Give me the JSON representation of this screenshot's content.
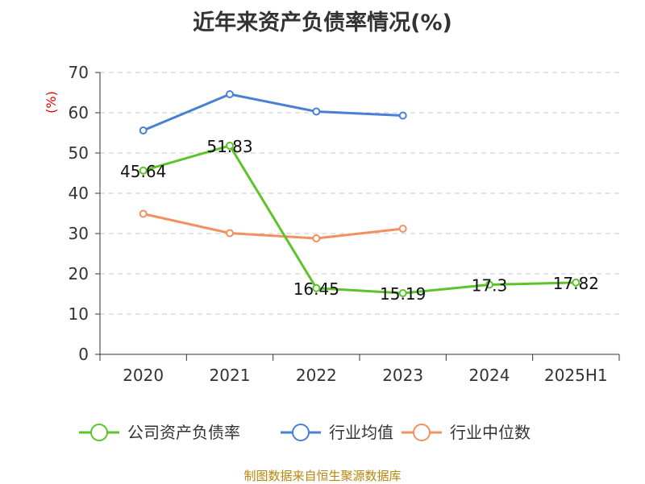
{
  "title": "近年来资产负债率情况(%)",
  "source": "制图数据来自恒生聚源数据库",
  "chart_data": {
    "type": "line",
    "title": "近年来资产负债率情况(%)",
    "ylabel": "(%)",
    "xlabel": "",
    "categories": [
      "2020",
      "2021",
      "2022",
      "2023",
      "2024",
      "2025H1"
    ],
    "ylim": [
      0,
      70
    ],
    "yticks": [
      0,
      10,
      20,
      30,
      40,
      50,
      60,
      70
    ],
    "grid": true,
    "legend_position": "bottom",
    "series": [
      {
        "name": "公司资产负债率",
        "color": "#5cc42a",
        "values": [
          45.64,
          51.83,
          16.45,
          15.19,
          17.3,
          17.82
        ],
        "labels": [
          "45.64",
          "51.83",
          "16.45",
          "15.19",
          "17.3",
          "17.82"
        ]
      },
      {
        "name": "行业均值",
        "color": "#4a7fd6",
        "values": [
          55.6,
          64.6,
          60.3,
          59.3,
          null,
          null
        ]
      },
      {
        "name": "行业中位数",
        "color": "#f39061",
        "values": [
          34.9,
          30.1,
          28.8,
          31.2,
          null,
          null
        ]
      }
    ]
  }
}
